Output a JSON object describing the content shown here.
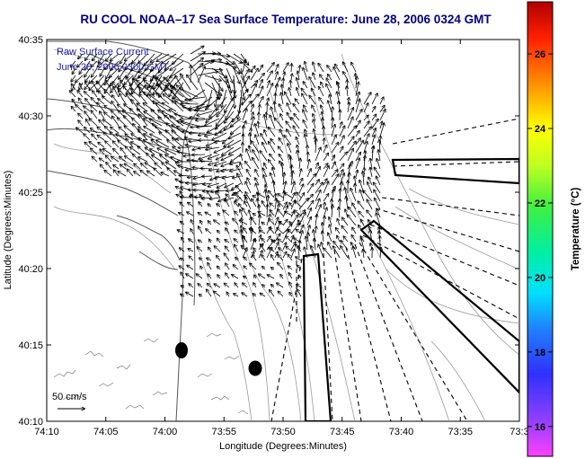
{
  "title": "RU COOL  NOAA–17  Sea Surface Temperature:  June 28, 2006 0324 GMT",
  "axes": {
    "xlabel": "Longitude (Degrees:Minutes)",
    "ylabel": "Latitude (Degrees:Minutes)",
    "xticks": [
      "74:10",
      "74:05",
      "74:00",
      "73:55",
      "73:50",
      "73:45",
      "73:40",
      "73:35",
      "73:3"
    ],
    "yticks": [
      "40:35",
      "40:30",
      "40:25",
      "40:20",
      "40:15",
      "40:10"
    ]
  },
  "legend": {
    "line1": "Raw Surface Current",
    "line2": "June 28, 2006 0300 GMT"
  },
  "scale_label": "50 cm/s",
  "colorbar": {
    "label": "Temperature (°C)",
    "ticks": [
      "26",
      "24",
      "22",
      "20",
      "18",
      "16"
    ],
    "range": [
      15.2,
      27.4
    ]
  },
  "colors": {
    "title": "#000080",
    "legend_text": "#1a1aa0",
    "arrows": "#000000",
    "contours": "#9a9a9a"
  }
}
